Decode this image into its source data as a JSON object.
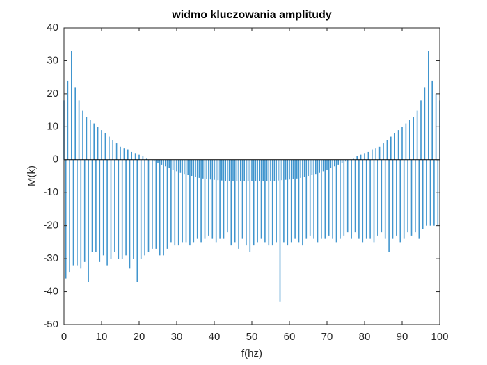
{
  "chart_data": {
    "type": "bar",
    "title": "widmo kluczowania amplitudy",
    "xlabel": "f(hz)",
    "ylabel": "M(k)",
    "color": "#0072bd",
    "x": [
      0,
      0.5,
      1,
      1.5,
      2,
      2.5,
      3,
      3.5,
      4,
      4.5,
      5,
      5.5,
      6,
      6.5,
      7,
      7.5,
      8,
      8.5,
      9,
      9.5,
      10,
      10.5,
      11,
      11.5,
      12,
      12.5,
      13,
      13.5,
      14,
      14.5,
      15,
      15.5,
      16,
      16.5,
      17,
      17.5,
      18,
      18.5,
      19,
      19.5,
      20,
      20.5,
      21,
      21.5,
      22,
      22.5,
      23,
      23.5,
      24,
      24.5,
      25,
      25.5,
      26,
      26.5,
      27,
      27.5,
      28,
      28.5,
      29,
      29.5,
      30,
      30.5,
      31,
      31.5,
      32,
      32.5,
      33,
      33.5,
      34,
      34.5,
      35,
      35.5,
      36,
      36.5,
      37,
      37.5,
      38,
      38.5,
      39,
      39.5,
      40,
      40.5,
      41,
      41.5,
      42,
      42.5,
      43,
      43.5,
      44,
      44.5,
      45,
      45.5,
      46,
      46.5,
      47,
      47.5,
      48,
      48.5,
      49,
      49.5,
      50,
      50.5,
      51,
      51.5,
      52,
      52.5,
      53,
      53.5,
      54,
      54.5,
      55,
      55.5,
      56,
      56.5,
      57,
      57.5,
      58,
      58.5,
      59,
      59.5,
      60,
      60.5,
      61,
      61.5,
      62,
      62.5,
      63,
      63.5,
      64,
      64.5,
      65,
      65.5,
      66,
      66.5,
      67,
      67.5,
      68,
      68.5,
      69,
      69.5,
      70,
      70.5,
      71,
      71.5,
      72,
      72.5,
      73,
      73.5,
      74,
      74.5,
      75,
      75.5,
      76,
      76.5,
      77,
      77.5,
      78,
      78.5,
      79,
      79.5,
      80,
      80.5,
      81,
      81.5,
      82,
      82.5,
      83,
      83.5,
      84,
      84.5,
      85,
      85.5,
      86,
      86.5,
      87,
      87.5,
      88,
      88.5,
      89,
      89.5,
      90,
      90.5,
      91,
      91.5,
      92,
      92.5,
      93,
      93.5,
      94,
      94.5,
      95,
      95.5,
      96,
      96.5,
      97,
      97.5,
      98,
      98.5,
      99,
      99.5,
      100
    ],
    "values": [
      18,
      -36,
      24,
      -34,
      33,
      -32,
      22,
      -32,
      18,
      -33,
      15,
      -31,
      13,
      -37,
      12,
      -28,
      11,
      -28,
      10,
      -31,
      9,
      -29,
      8,
      -32,
      7,
      -30,
      6,
      -28,
      5,
      -30,
      4,
      -30,
      3.5,
      -29,
      3,
      -33,
      2.5,
      -30,
      2,
      -37,
      1.5,
      -30,
      1,
      -29,
      0.5,
      -28,
      0,
      -27,
      -0.5,
      -27,
      -1,
      -29,
      -1.5,
      -29,
      -2,
      -27,
      -2.5,
      -25,
      -3,
      -26,
      -3.5,
      -26,
      -4,
      -25,
      -4.3,
      -25,
      -4.6,
      -26,
      -4.9,
      -25,
      -5.2,
      -24,
      -5.5,
      -25,
      -5.7,
      -24,
      -5.9,
      -23,
      -6,
      -24,
      -6.1,
      -25,
      -6.2,
      -24,
      -6.3,
      -24,
      -6.4,
      -22,
      -6.5,
      -26,
      -6.5,
      -25,
      -6.5,
      -27,
      -6.5,
      -24,
      -6.5,
      -26,
      -6.5,
      -28,
      -6.5,
      -26,
      -6.5,
      -25,
      -6.5,
      -24,
      -6.5,
      -25,
      -6.5,
      -26,
      -6.5,
      -26,
      -6.4,
      -25,
      -6.3,
      -43,
      -6.2,
      -25,
      -6.1,
      -26,
      -6,
      -25,
      -5.9,
      -24,
      -5.7,
      -25,
      -5.5,
      -26,
      -5.2,
      -24,
      -4.9,
      -23,
      -4.6,
      -24,
      -4.3,
      -25,
      -4,
      -24,
      -3.5,
      -24,
      -3,
      -23,
      -2.5,
      -24,
      -2,
      -25,
      -1.5,
      -24,
      -1,
      -23,
      -0.5,
      -22,
      0,
      -24,
      0.5,
      -22,
      1,
      -24,
      1.5,
      -25,
      2,
      -24,
      2.5,
      -24,
      3,
      -25,
      3.5,
      -23,
      4,
      -22,
      5,
      -24,
      6,
      -28,
      7,
      -24,
      8,
      -23,
      9,
      -25,
      10,
      -24,
      11,
      -22,
      12,
      -23,
      13,
      -22,
      15,
      -24,
      18,
      -21,
      22,
      -20,
      33,
      -20,
      24,
      -20,
      20,
      -20,
      18
    ],
    "xlim": [
      0,
      100
    ],
    "xticks": [
      0,
      10,
      20,
      30,
      40,
      50,
      60,
      70,
      80,
      90,
      100
    ],
    "ylim": [
      -50,
      40
    ],
    "yticks": [
      -50,
      -40,
      -30,
      -20,
      -10,
      0,
      10,
      20,
      30,
      40
    ],
    "grid": false
  }
}
